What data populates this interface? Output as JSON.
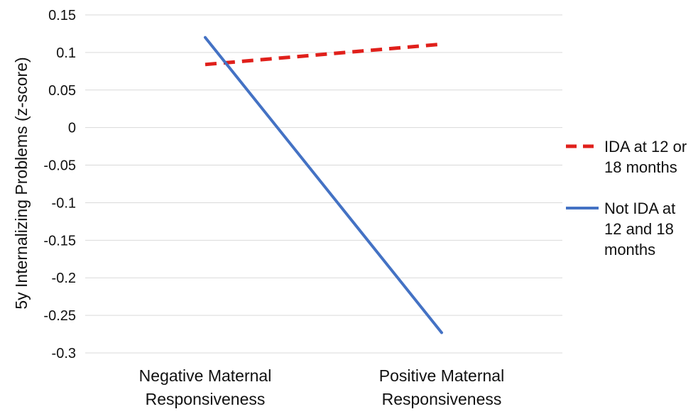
{
  "chart_data": {
    "type": "line",
    "title": "",
    "xlabel": "",
    "ylabel": "5y Internalizing Problems (z-score)",
    "categories": [
      [
        "Negative Maternal",
        "Responsiveness"
      ],
      [
        "Positive Maternal",
        "Responsiveness"
      ]
    ],
    "ylim": [
      -0.3,
      0.15
    ],
    "yticks": [
      0.15,
      0.1,
      0.05,
      0,
      -0.05,
      -0.1,
      -0.15,
      -0.2,
      -0.25,
      -0.3
    ],
    "ytick_labels": [
      "0.15",
      "0.1",
      "0.05",
      "0",
      "-0.05",
      "-0.1",
      "-0.15",
      "-0.2",
      "-0.25",
      "-0.3"
    ],
    "grid": true,
    "legend_position": "right",
    "series": [
      {
        "name": [
          "IDA at 12 or",
          "18 months"
        ],
        "values": [
          0.084,
          0.111
        ],
        "color": "#e0201b",
        "style": "dashed"
      },
      {
        "name": [
          "Not IDA at",
          "12 and 18",
          "months"
        ],
        "values": [
          0.12,
          -0.273
        ],
        "color": "#4472c4",
        "style": "solid"
      }
    ]
  }
}
